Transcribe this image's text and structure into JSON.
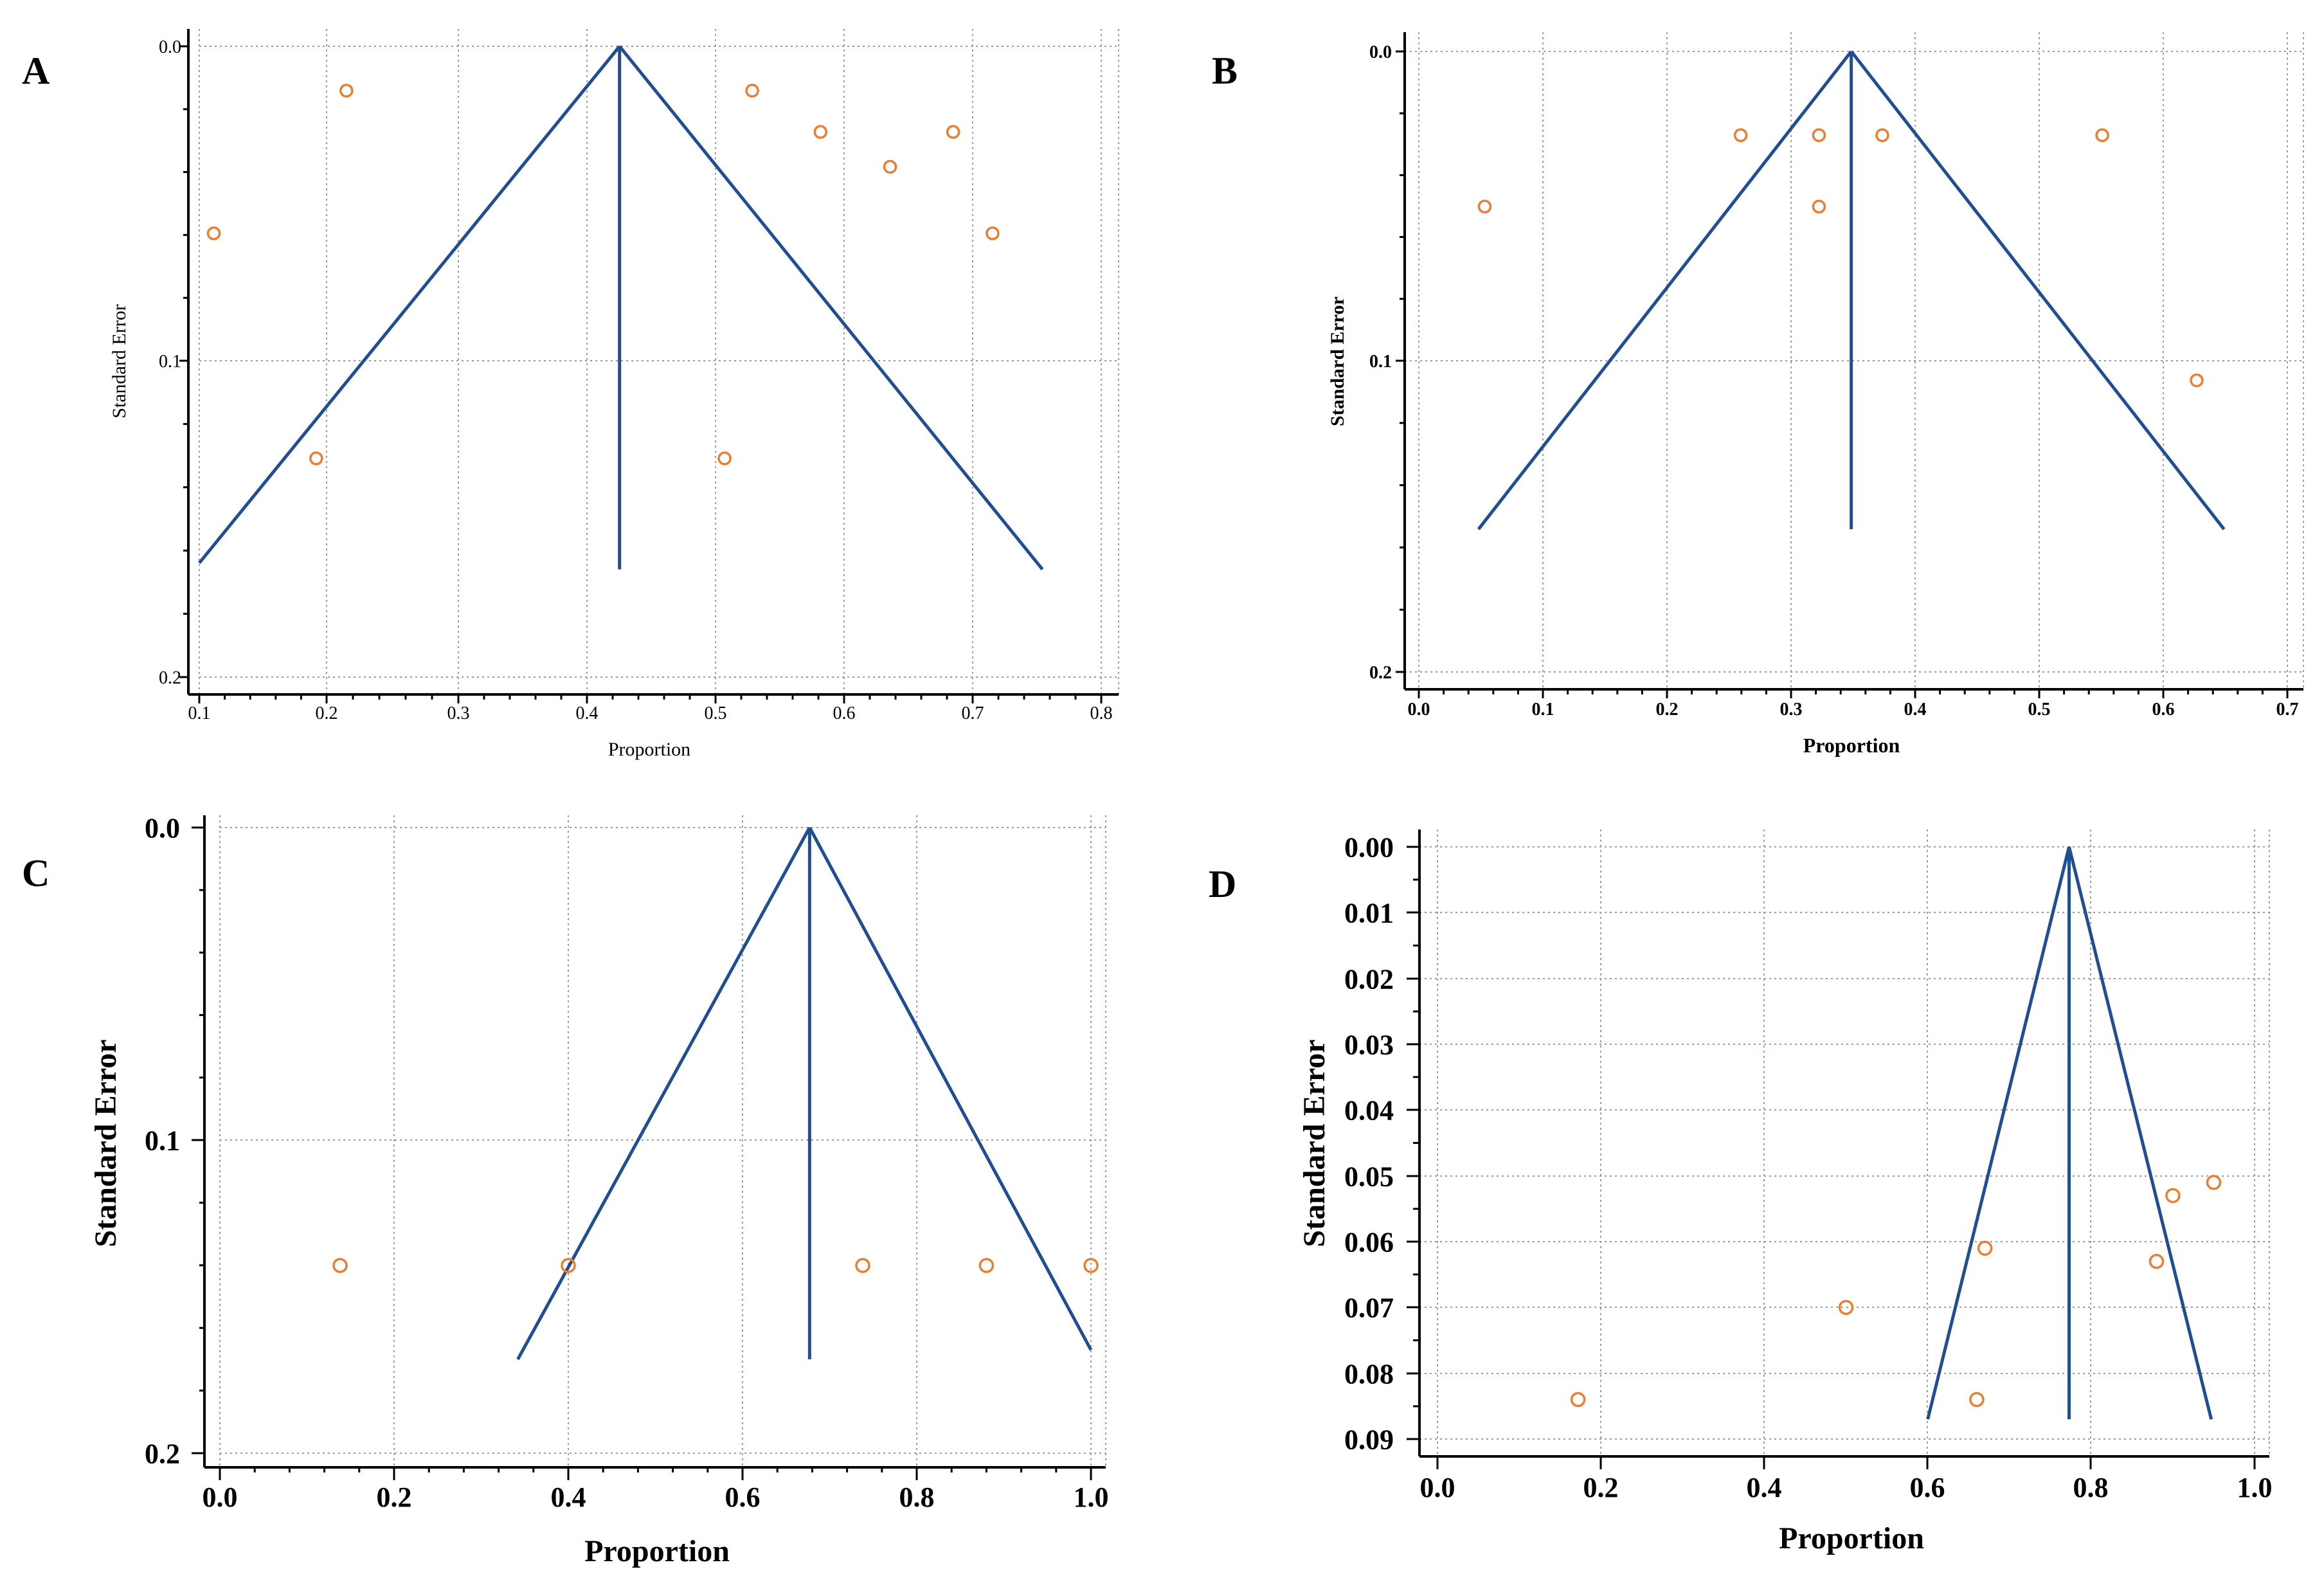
{
  "figure_title": "",
  "colors": {
    "funnel": "#1f4e96",
    "point": "#ee7d2e",
    "axis": "#000000",
    "grid": "#9a9a9a"
  },
  "chart_data": [
    {
      "panel": "A",
      "type": "scatter",
      "title": "",
      "xlabel": "Proportion",
      "ylabel": "Standard Error",
      "xlim": [
        0.1,
        0.8
      ],
      "ylim": [
        0.0,
        0.2
      ],
      "y_inverted": true,
      "x_ticks": [
        "0.1",
        "0.2",
        "0.3",
        "0.4",
        "0.5",
        "0.6",
        "0.7",
        "0.8"
      ],
      "y_ticks": [
        "0.0",
        "0.1",
        "0.2"
      ],
      "pooled_estimate": 0.42,
      "funnel_left": [
        [
          0.1,
          0.163
        ],
        [
          0.42,
          0.0
        ]
      ],
      "funnel_right": [
        [
          0.42,
          0.0
        ],
        [
          0.742,
          0.165
        ]
      ],
      "center_line": [
        [
          0.42,
          0.0
        ],
        [
          0.42,
          0.165
        ]
      ],
      "points": [
        {
          "x": 0.212,
          "y": 0.014
        },
        {
          "x": 0.111,
          "y": 0.059
        },
        {
          "x": 0.189,
          "y": 0.13
        },
        {
          "x": 0.521,
          "y": 0.014
        },
        {
          "x": 0.573,
          "y": 0.027
        },
        {
          "x": 0.626,
          "y": 0.038
        },
        {
          "x": 0.674,
          "y": 0.027
        },
        {
          "x": 0.704,
          "y": 0.059
        },
        {
          "x": 0.5,
          "y": 0.13
        }
      ]
    },
    {
      "panel": "B",
      "type": "scatter",
      "title": "",
      "xlabel": "Proportion",
      "ylabel": "Standard Error",
      "xlim": [
        0.0,
        0.7
      ],
      "ylim": [
        0.0,
        0.2
      ],
      "y_inverted": true,
      "x_ticks": [
        "0.0",
        "0.1",
        "0.2",
        "0.3",
        "0.4",
        "0.5",
        "0.6",
        "0.7"
      ],
      "y_ticks": [
        "0.0",
        "0.1",
        "0.2"
      ],
      "pooled_estimate": 0.348,
      "funnel_left": [
        [
          0.048,
          0.154
        ],
        [
          0.348,
          0.0
        ]
      ],
      "funnel_right": [
        [
          0.348,
          0.0
        ],
        [
          0.648,
          0.154
        ]
      ],
      "center_line": [
        [
          0.348,
          0.0
        ],
        [
          0.348,
          0.154
        ]
      ],
      "points": [
        {
          "x": 0.053,
          "y": 0.05
        },
        {
          "x": 0.259,
          "y": 0.027
        },
        {
          "x": 0.322,
          "y": 0.027
        },
        {
          "x": 0.322,
          "y": 0.05
        },
        {
          "x": 0.373,
          "y": 0.027
        },
        {
          "x": 0.55,
          "y": 0.027
        },
        {
          "x": 0.626,
          "y": 0.106
        }
      ]
    },
    {
      "panel": "C",
      "type": "scatter",
      "title": "",
      "xlabel": "Proportion",
      "ylabel": "Standard Error",
      "xlim": [
        0.0,
        1.0
      ],
      "ylim": [
        0.0,
        0.2
      ],
      "y_inverted": true,
      "x_ticks": [
        "0.0",
        "0.2",
        "0.4",
        "0.6",
        "0.8",
        "1.0"
      ],
      "y_ticks": [
        "0.0",
        "0.1",
        "0.2"
      ],
      "pooled_estimate": 0.677,
      "funnel_left": [
        [
          0.342,
          0.17
        ],
        [
          0.677,
          0.0
        ]
      ],
      "funnel_right": [
        [
          0.677,
          0.0
        ],
        [
          1.0,
          0.167
        ]
      ],
      "center_line": [
        [
          0.677,
          0.0
        ],
        [
          0.677,
          0.17
        ]
      ],
      "points": [
        {
          "x": 0.138,
          "y": 0.14
        },
        {
          "x": 0.4,
          "y": 0.14
        },
        {
          "x": 0.738,
          "y": 0.14
        },
        {
          "x": 0.88,
          "y": 0.14
        },
        {
          "x": 1.0,
          "y": 0.14
        }
      ]
    },
    {
      "panel": "D",
      "type": "scatter",
      "title": "",
      "xlabel": "Proportion",
      "ylabel": "Standard Error",
      "xlim": [
        0.0,
        1.0
      ],
      "ylim": [
        0.0,
        0.09
      ],
      "y_inverted": true,
      "x_ticks": [
        "0.0",
        "0.2",
        "0.4",
        "0.6",
        "0.8",
        "1.0"
      ],
      "y_ticks": [
        "0.00",
        "0.01",
        "0.02",
        "0.03",
        "0.04",
        "0.05",
        "0.06",
        "0.07",
        "0.08",
        "0.09"
      ],
      "pooled_estimate": 0.773,
      "funnel_left": [
        [
          0.6,
          0.087
        ],
        [
          0.773,
          0.0
        ]
      ],
      "funnel_right": [
        [
          0.773,
          0.0
        ],
        [
          0.947,
          0.087
        ]
      ],
      "center_line": [
        [
          0.773,
          0.0
        ],
        [
          0.773,
          0.087
        ]
      ],
      "points": [
        {
          "x": 0.172,
          "y": 0.084
        },
        {
          "x": 0.5,
          "y": 0.07
        },
        {
          "x": 0.66,
          "y": 0.084
        },
        {
          "x": 0.67,
          "y": 0.061
        },
        {
          "x": 0.88,
          "y": 0.063
        },
        {
          "x": 0.9,
          "y": 0.053
        },
        {
          "x": 0.95,
          "y": 0.051
        }
      ]
    }
  ]
}
